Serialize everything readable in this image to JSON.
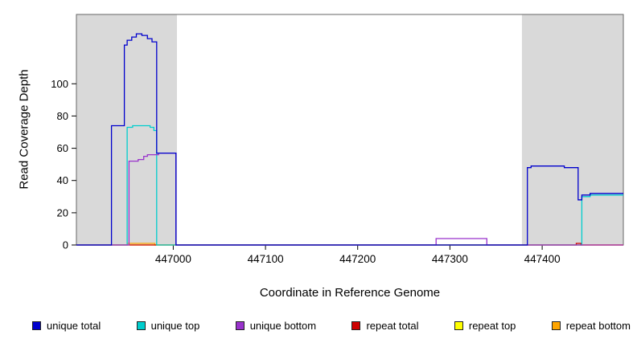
{
  "chart_data": {
    "type": "line",
    "title": "",
    "xlabel": "Coordinate in Reference Genome",
    "ylabel": "Read Coverage Depth",
    "xlim": [
      446895,
      447488
    ],
    "ylim": [
      0,
      143
    ],
    "xticks": [
      447000,
      447100,
      447200,
      447300,
      447400
    ],
    "yticks": [
      0,
      20,
      40,
      60,
      80,
      100
    ],
    "grid": false,
    "legend_position": "bottom",
    "background_color": "#ffffff",
    "shaded_region_color": "#d9d9d9",
    "shaded_regions": [
      {
        "x0": 446895,
        "x1": 447004
      },
      {
        "x0": 447378,
        "x1": 447488
      }
    ],
    "draw_order": [
      4,
      5,
      3,
      1,
      2,
      0
    ],
    "series": [
      {
        "name": "unique total",
        "color": "#0000cd",
        "points": [
          [
            446895,
            0
          ],
          [
            446933,
            0
          ],
          [
            446933,
            74
          ],
          [
            446947,
            74
          ],
          [
            446947,
            124
          ],
          [
            446950,
            124
          ],
          [
            446950,
            127
          ],
          [
            446955,
            127
          ],
          [
            446955,
            129
          ],
          [
            446960,
            129
          ],
          [
            446960,
            131
          ],
          [
            446966,
            131
          ],
          [
            446966,
            130
          ],
          [
            446972,
            130
          ],
          [
            446972,
            128
          ],
          [
            446977,
            128
          ],
          [
            446977,
            126
          ],
          [
            446982,
            126
          ],
          [
            446982,
            57
          ],
          [
            447003,
            57
          ],
          [
            447003,
            0
          ],
          [
            447384,
            0
          ],
          [
            447384,
            48
          ],
          [
            447388,
            48
          ],
          [
            447388,
            49
          ],
          [
            447424,
            49
          ],
          [
            447424,
            48
          ],
          [
            447439,
            48
          ],
          [
            447439,
            28
          ],
          [
            447443,
            28
          ],
          [
            447443,
            31
          ],
          [
            447452,
            31
          ],
          [
            447452,
            32
          ],
          [
            447488,
            32
          ]
        ]
      },
      {
        "name": "unique top",
        "color": "#00cdcd",
        "points": [
          [
            446895,
            0
          ],
          [
            446950,
            0
          ],
          [
            446950,
            73
          ],
          [
            446956,
            73
          ],
          [
            446956,
            74
          ],
          [
            446975,
            74
          ],
          [
            446975,
            73
          ],
          [
            446979,
            73
          ],
          [
            446979,
            71
          ],
          [
            446982,
            71
          ],
          [
            446982,
            0
          ],
          [
            447443,
            0
          ],
          [
            447443,
            30
          ],
          [
            447452,
            30
          ],
          [
            447452,
            31
          ],
          [
            447488,
            31
          ]
        ]
      },
      {
        "name": "unique bottom",
        "color": "#9932cc",
        "points": [
          [
            446895,
            0
          ],
          [
            446952,
            0
          ],
          [
            446952,
            52
          ],
          [
            446962,
            52
          ],
          [
            446962,
            53
          ],
          [
            446968,
            53
          ],
          [
            446968,
            55
          ],
          [
            446972,
            55
          ],
          [
            446972,
            56
          ],
          [
            446984,
            56
          ],
          [
            446984,
            57
          ],
          [
            447003,
            57
          ],
          [
            447003,
            0
          ],
          [
            447285,
            0
          ],
          [
            447285,
            4
          ],
          [
            447340,
            4
          ],
          [
            447340,
            0
          ],
          [
            447488,
            0
          ]
        ]
      },
      {
        "name": "repeat total",
        "color": "#cd0000",
        "points": [
          [
            446895,
            0
          ],
          [
            447437,
            0
          ],
          [
            447437,
            1
          ],
          [
            447442,
            1
          ],
          [
            447442,
            0
          ],
          [
            447488,
            0
          ]
        ]
      },
      {
        "name": "repeat top",
        "color": "#ffff00",
        "points": [
          [
            446895,
            0
          ],
          [
            447488,
            0
          ]
        ]
      },
      {
        "name": "repeat bottom",
        "color": "#ffa500",
        "points": [
          [
            446895,
            0
          ],
          [
            446950,
            0
          ],
          [
            446950,
            1
          ],
          [
            446980,
            1
          ],
          [
            446980,
            0
          ],
          [
            447488,
            0
          ]
        ]
      }
    ]
  }
}
